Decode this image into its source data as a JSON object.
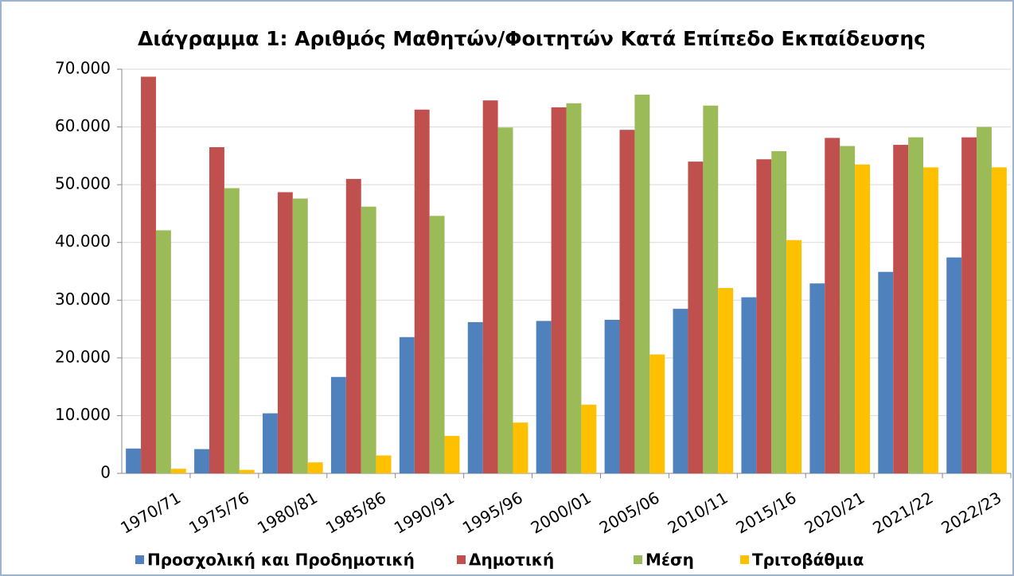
{
  "chart_data": {
    "type": "bar",
    "title": "Διάγραμμα 1: Αριθμός Μαθητών/Φοιτητών Κατά Επίπεδο Εκπαίδευσης",
    "categories": [
      "1970/71",
      "1975/76",
      "1980/81",
      "1985/86",
      "1990/91",
      "1995/96",
      "2000/01",
      "2005/06",
      "2010/11",
      "2015/16",
      "2020/21",
      "2021/22",
      "2022/23"
    ],
    "series": [
      {
        "name": "Προσχολική και Προδημοτική",
        "color": "#4f81bd",
        "values": [
          4300,
          4200,
          10400,
          16700,
          23600,
          26200,
          26400,
          26600,
          28500,
          30500,
          32900,
          34900,
          37400
        ]
      },
      {
        "name": "Δημοτική",
        "color": "#c0504d",
        "values": [
          68700,
          56500,
          48700,
          51000,
          63000,
          64600,
          63400,
          59500,
          54000,
          54400,
          58100,
          56900,
          58200
        ]
      },
      {
        "name": "Μέση",
        "color": "#9bbb59",
        "values": [
          42100,
          49400,
          47600,
          46200,
          44600,
          59900,
          64100,
          65600,
          63700,
          55800,
          56700,
          58200,
          60000
        ]
      },
      {
        "name": "Τριτοβάθμια",
        "color": "#ffc000",
        "values": [
          800,
          600,
          1900,
          3100,
          6500,
          8800,
          11900,
          20600,
          32100,
          40400,
          53500,
          53000,
          53000
        ]
      }
    ],
    "ylim": [
      0,
      70000
    ],
    "yticks": [
      0,
      {
        "value": 10000,
        "label": "10.000"
      },
      {
        "value": 20000,
        "label": "20.000"
      },
      {
        "value": 30000,
        "label": "30.000"
      },
      {
        "value": 40000,
        "label": "40.000"
      },
      {
        "value": 50000,
        "label": "50.000"
      },
      {
        "value": 60000,
        "label": "60.000"
      },
      {
        "value": 70000,
        "label": "70.000"
      }
    ],
    "grid": true
  }
}
